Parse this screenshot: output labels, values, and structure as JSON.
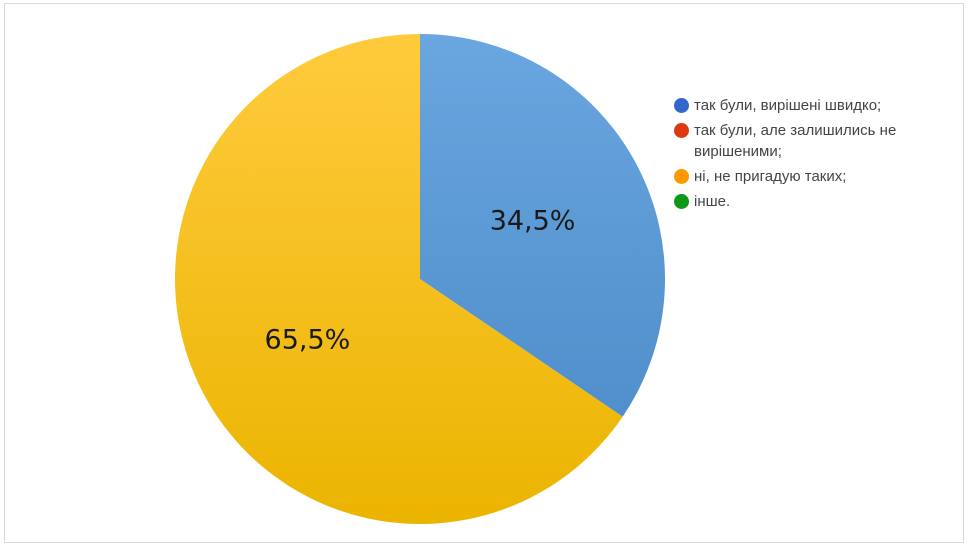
{
  "chart_data": {
    "type": "pie",
    "slices": [
      {
        "label": "так були, вирішені швидко;",
        "value": 34.5,
        "value_label": "34,5%",
        "color": "#5b9bd5"
      },
      {
        "label": "так були, але залишились не вирішеними;",
        "value": 0,
        "value_label": "",
        "color": "#dc3912"
      },
      {
        "label": "ні, не пригадую таких;",
        "value": 65.5,
        "value_label": "65,5%",
        "color": "#ffc000"
      },
      {
        "label": "інше.",
        "value": 0,
        "value_label": "",
        "color": "#109618"
      }
    ],
    "legend": {
      "position": "right",
      "items": [
        {
          "label": "так були, вирішені швидко;",
          "color": "#3366cc"
        },
        {
          "label": "так були, але залишились не вирішеними;",
          "color": "#dc3912"
        },
        {
          "label": "ні, не пригадую таких;",
          "color": "#ff9900"
        },
        {
          "label": "інше.",
          "color": "#109618"
        }
      ]
    }
  }
}
